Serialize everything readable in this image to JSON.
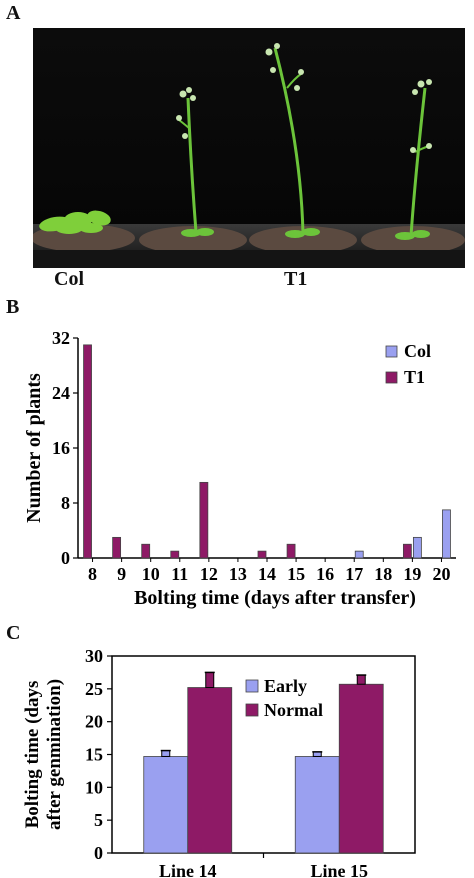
{
  "panels": {
    "a": "A",
    "b": "B",
    "c": "C"
  },
  "photo": {
    "labels": {
      "col": "Col",
      "t1": "T1"
    }
  },
  "chart_data": [
    {
      "type": "bar",
      "panel": "B",
      "xlabel": "Bolting time (days after transfer)",
      "ylabel": "Number of plants",
      "ylim": [
        0,
        32
      ],
      "yticks": [
        0,
        8,
        16,
        24,
        32
      ],
      "categories": [
        "8",
        "9",
        "10",
        "11",
        "12",
        "13",
        "14",
        "15",
        "16",
        "17",
        "18",
        "19",
        "20"
      ],
      "series": [
        {
          "name": "Col",
          "color": "#9aa0f0",
          "values": [
            0,
            0,
            0,
            0,
            0,
            0,
            0,
            0,
            0,
            1,
            0,
            3,
            7
          ]
        },
        {
          "name": "T1",
          "color": "#8e1a66",
          "values": [
            31,
            3,
            2,
            1,
            11,
            0,
            1,
            2,
            0,
            0,
            0,
            2,
            0
          ]
        }
      ],
      "legend": "top-right"
    },
    {
      "type": "bar",
      "panel": "C",
      "xlabel": "",
      "ylabel": "Bolting time (days after genmination)",
      "ylabel_lines": [
        "Bolting time (days",
        "after genmination)"
      ],
      "ylim": [
        0,
        30
      ],
      "yticks": [
        0,
        5,
        10,
        15,
        20,
        25,
        30
      ],
      "categories": [
        "Line 14",
        "Line 15"
      ],
      "series": [
        {
          "name": "Early",
          "color": "#9aa0f0",
          "values": [
            14.7,
            14.7
          ],
          "errors": [
            0.9,
            0.7
          ]
        },
        {
          "name": "Normal",
          "color": "#8e1a66",
          "values": [
            25.2,
            25.7
          ],
          "errors": [
            2.3,
            1.4
          ]
        }
      ],
      "legend": "top-left"
    }
  ]
}
